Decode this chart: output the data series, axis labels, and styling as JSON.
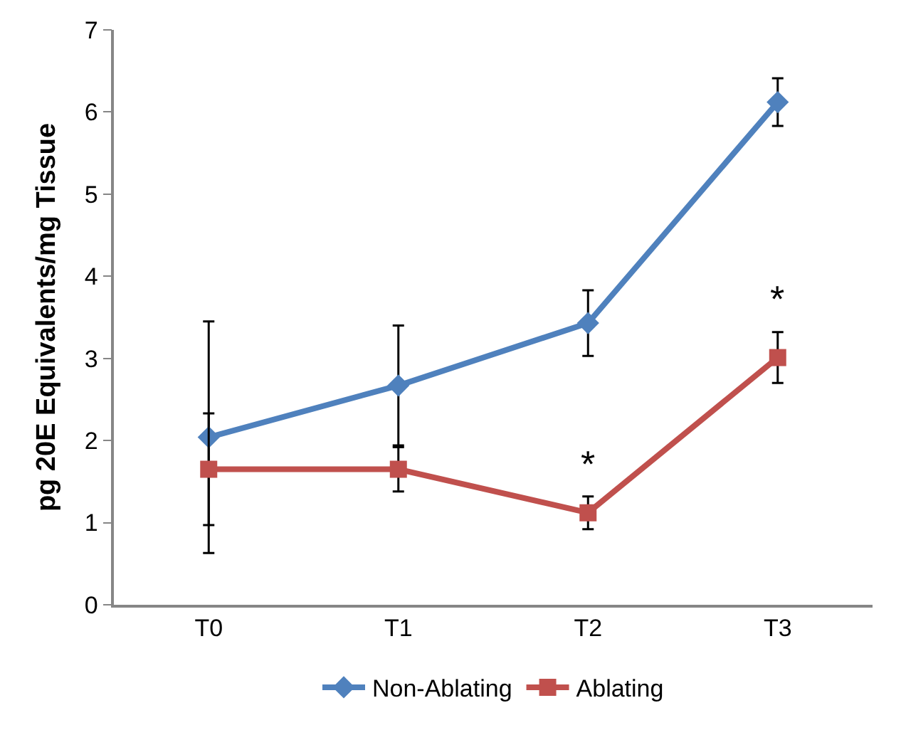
{
  "chart_data": {
    "type": "line",
    "ylabel": "pg 20E Equivalents/mg Tissue",
    "categories": [
      "T0",
      "T1",
      "T2",
      "T3"
    ],
    "series": [
      {
        "name": "Non-Ablating",
        "color": "#4f81bd",
        "marker": "diamond",
        "values": [
          2.04,
          2.67,
          3.43,
          6.12
        ],
        "errors": [
          1.41,
          0.73,
          0.4,
          0.29
        ]
      },
      {
        "name": "Ablating",
        "color": "#c0504d",
        "marker": "square",
        "values": [
          1.65,
          1.65,
          1.12,
          3.01
        ],
        "errors": [
          0.68,
          0.27,
          0.2,
          0.31
        ]
      }
    ],
    "annotations": [
      "*",
      "*"
    ],
    "ylim": [
      0,
      7
    ],
    "yticks": [
      0,
      1,
      2,
      3,
      4,
      5,
      6,
      7
    ],
    "legend": "bottom",
    "line_style": "solid"
  }
}
